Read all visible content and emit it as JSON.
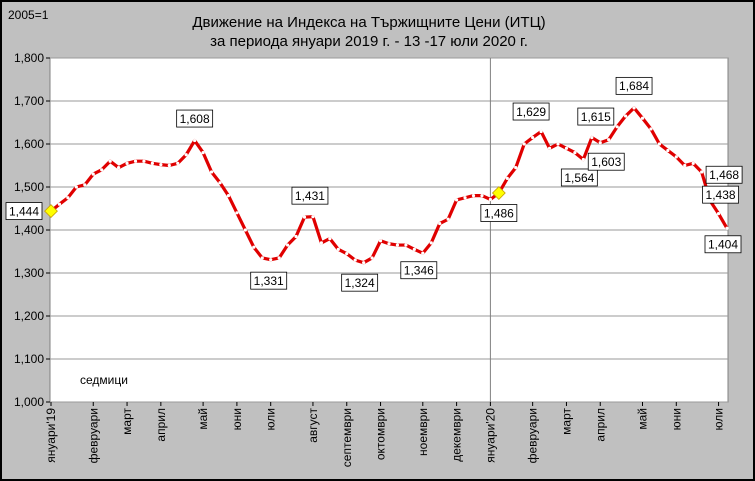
{
  "chart_data": {
    "type": "line",
    "unit_label": "2005=1",
    "title_line1": "Движение на Индекса на Тържищните Цени (ИТЦ)",
    "title_line2": "за периода януари 2019 г. - 13 -17 юли 2020 г.",
    "note": "седмици",
    "ylim": [
      1.0,
      1.8
    ],
    "yticks": [
      "1,000",
      "1,100",
      "1,200",
      "1,300",
      "1,400",
      "1,500",
      "1,600",
      "1,700",
      "1,800"
    ],
    "grid": true,
    "colors": {
      "line": "#e00000",
      "marker": "#ffffff",
      "highlight": "#ffff00",
      "plot_bg": "#ffffff",
      "chart_bg": "#c0c0c0"
    },
    "x_labels": [
      {
        "index": 0,
        "label": "януари'19"
      },
      {
        "index": 5,
        "label": "февруари"
      },
      {
        "index": 9,
        "label": "март"
      },
      {
        "index": 13,
        "label": "април"
      },
      {
        "index": 18,
        "label": "май"
      },
      {
        "index": 22,
        "label": "юни"
      },
      {
        "index": 26,
        "label": "юли"
      },
      {
        "index": 31,
        "label": "август"
      },
      {
        "index": 35,
        "label": "септември"
      },
      {
        "index": 39,
        "label": "октомври"
      },
      {
        "index": 44,
        "label": "ноември"
      },
      {
        "index": 48,
        "label": "декември"
      },
      {
        "index": 52,
        "label": "януари'20"
      },
      {
        "index": 57,
        "label": "февруари"
      },
      {
        "index": 61,
        "label": "март"
      },
      {
        "index": 65,
        "label": "април"
      },
      {
        "index": 70,
        "label": "май"
      },
      {
        "index": 74,
        "label": "юни"
      },
      {
        "index": 79,
        "label": "юли"
      }
    ],
    "series": [
      {
        "values": [
          1.444,
          1.46,
          1.475,
          1.5,
          1.505,
          1.53,
          1.54,
          1.56,
          1.545,
          1.555,
          1.56,
          1.56,
          1.555,
          1.552,
          1.55,
          1.555,
          1.575,
          1.608,
          1.58,
          1.535,
          1.51,
          1.48,
          1.44,
          1.4,
          1.36,
          1.335,
          1.331,
          1.335,
          1.365,
          1.385,
          1.43,
          1.431,
          1.37,
          1.38,
          1.355,
          1.345,
          1.33,
          1.324,
          1.335,
          1.375,
          1.368,
          1.365,
          1.365,
          1.355,
          1.346,
          1.37,
          1.415,
          1.425,
          1.47,
          1.475,
          1.48,
          1.48,
          1.471,
          1.486,
          1.52,
          1.545,
          1.6,
          1.615,
          1.629,
          1.59,
          1.6,
          1.59,
          1.58,
          1.564,
          1.615,
          1.603,
          1.61,
          1.64,
          1.665,
          1.684,
          1.66,
          1.635,
          1.6,
          1.585,
          1.57,
          1.55,
          1.555,
          1.535,
          1.468,
          1.438,
          1.404
        ]
      }
    ],
    "highlights": [
      0,
      53
    ],
    "data_labels": [
      {
        "index": 0,
        "text": "1,444"
      },
      {
        "index": 17,
        "text": "1,608"
      },
      {
        "index": 26,
        "text": "1,331"
      },
      {
        "index": 31,
        "text": "1,431"
      },
      {
        "index": 37,
        "text": "1,324"
      },
      {
        "index": 44,
        "text": "1,346"
      },
      {
        "index": 53,
        "text": "1,486"
      },
      {
        "index": 58,
        "text": "1,629"
      },
      {
        "index": 63,
        "text": "1,564"
      },
      {
        "index": 64,
        "text": "1,615"
      },
      {
        "index": 65,
        "text": "1,603"
      },
      {
        "index": 69,
        "text": "1,684"
      },
      {
        "index": 78,
        "text": "1,468"
      },
      {
        "index": 79,
        "text": "1,438"
      },
      {
        "index": 80,
        "text": "1,404"
      }
    ]
  }
}
